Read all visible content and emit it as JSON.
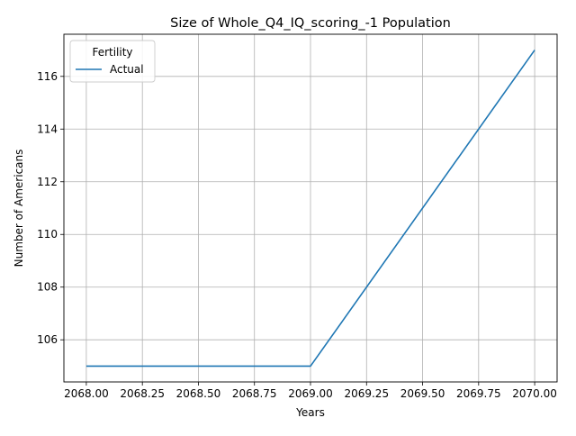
{
  "chart_data": {
    "type": "line",
    "title": "Size of Whole_Q4_IQ_scoring_-1 Population",
    "xlabel": "Years",
    "ylabel": "Number of Americans",
    "xlim": [
      2067.9,
      2070.1
    ],
    "ylim": [
      104.4,
      117.6
    ],
    "x_ticks": [
      2068.0,
      2068.25,
      2068.5,
      2068.75,
      2069.0,
      2069.25,
      2069.5,
      2069.75,
      2070.0
    ],
    "x_tick_labels": [
      "2068.00",
      "2068.25",
      "2068.50",
      "2068.75",
      "2069.00",
      "2069.25",
      "2069.50",
      "2069.75",
      "2070.00"
    ],
    "y_ticks": [
      106,
      108,
      110,
      112,
      114,
      116
    ],
    "y_tick_labels": [
      "106",
      "108",
      "110",
      "112",
      "114",
      "116"
    ],
    "grid": true,
    "legend": {
      "title": "Fertility",
      "placement": "upper-left"
    },
    "series": [
      {
        "name": "Actual",
        "color": "#1f77b4",
        "x": [
          2068,
          2069,
          2070
        ],
        "y": [
          105,
          105,
          117
        ]
      }
    ]
  }
}
